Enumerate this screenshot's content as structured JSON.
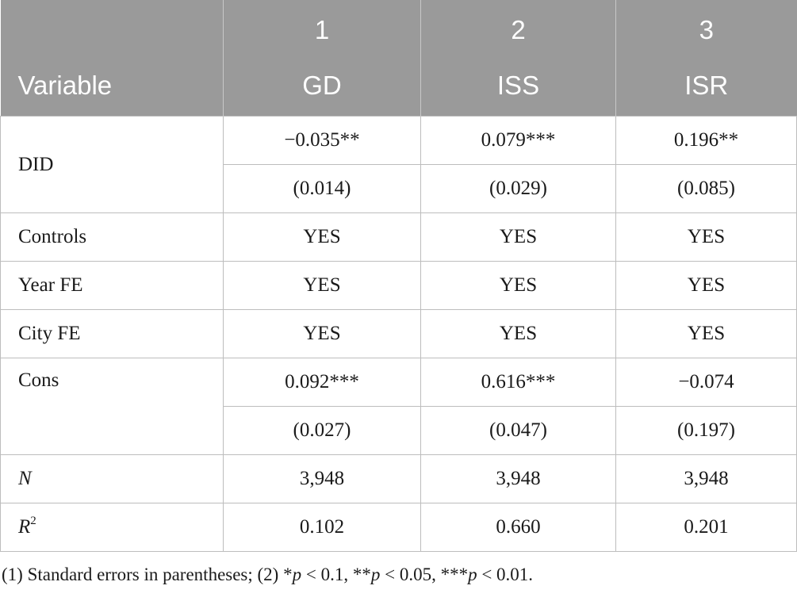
{
  "table": {
    "header_numbers": [
      "",
      "1",
      "2",
      "3"
    ],
    "header_names": [
      "Variable",
      "GD",
      "ISS",
      "ISR"
    ],
    "rows": {
      "did": {
        "label": "DID",
        "coef": [
          "−0.035**",
          "0.079***",
          "0.196**"
        ],
        "se": [
          "(0.014)",
          "(0.029)",
          "(0.085)"
        ]
      },
      "controls": {
        "label": "Controls",
        "values": [
          "YES",
          "YES",
          "YES"
        ]
      },
      "year_fe": {
        "label": "Year FE",
        "values": [
          "YES",
          "YES",
          "YES"
        ]
      },
      "city_fe": {
        "label": "City FE",
        "values": [
          "YES",
          "YES",
          "YES"
        ]
      },
      "cons": {
        "label": "Cons",
        "coef": [
          "0.092***",
          "0.616***",
          "−0.074"
        ],
        "se": [
          "(0.027)",
          "(0.047)",
          "(0.197)"
        ]
      },
      "n": {
        "label": "N",
        "values": [
          "3,948",
          "3,948",
          "3,948"
        ]
      },
      "r2": {
        "label": "R",
        "label_sup": "2",
        "values": [
          "0.102",
          "0.660",
          "0.201"
        ]
      }
    }
  },
  "footnote": {
    "text": "(1) Standard errors in parentheses; (2) *p < 0.1, **p < 0.05, ***p < 0.01."
  }
}
